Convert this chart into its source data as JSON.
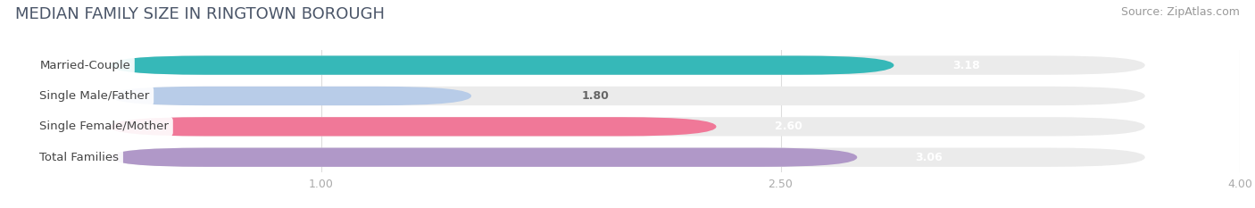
{
  "title": "MEDIAN FAMILY SIZE IN RINGTOWN BOROUGH",
  "source": "Source: ZipAtlas.com",
  "categories": [
    "Married-Couple",
    "Single Male/Father",
    "Single Female/Mother",
    "Total Families"
  ],
  "values": [
    3.18,
    1.8,
    2.6,
    3.06
  ],
  "bar_colors": [
    "#36b8b8",
    "#b8cce8",
    "#f07898",
    "#b098c8"
  ],
  "bar_bg_color": "#ebebeb",
  "xmin": 0,
  "xmax": 4.0,
  "xticks": [
    1.0,
    2.5,
    4.0
  ],
  "xtick_labels": [
    "1.00",
    "2.50",
    "4.00"
  ],
  "fig_width": 14.06,
  "fig_height": 2.33,
  "bar_height": 0.62,
  "title_fontsize": 13,
  "source_fontsize": 9,
  "label_fontsize": 9.5,
  "value_fontsize": 9,
  "tick_fontsize": 9,
  "background_color": "#ffffff",
  "title_color": "#4a5568",
  "source_color": "#999999",
  "label_text_color": "#444444",
  "value_text_color_inside": "#ffffff",
  "value_text_color_outside": "#666666"
}
